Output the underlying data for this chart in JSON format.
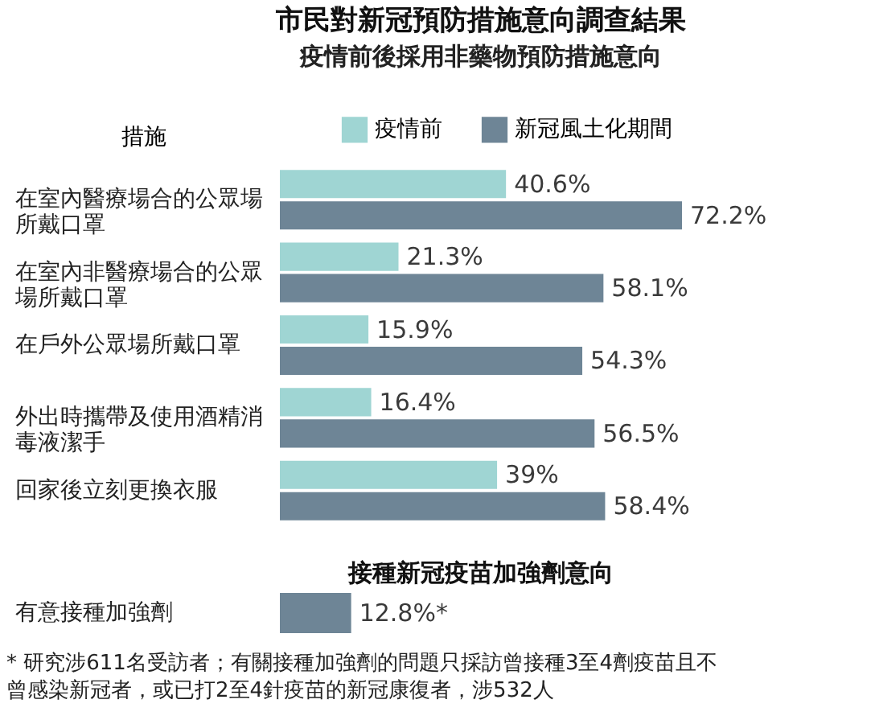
{
  "chart_data": [
    {
      "type": "bar",
      "orientation": "horizontal",
      "title": "市民對新冠預防措施意向調查結果",
      "subtitle": "疫情前後採用非藥物預防措施意向",
      "ylabel": "措施",
      "categories": [
        "在室內醫療場合的公眾場所戴口罩",
        "在室內非醫療場合的公眾場所戴口罩",
        "在戶外公眾場所戴口罩",
        "外出時攜帶及使用酒精消毒液潔手",
        "回家後立刻更換衣服"
      ],
      "series": [
        {
          "name": "疫情前",
          "color": "#9fd5d3",
          "values": [
            40.6,
            21.3,
            15.9,
            16.4,
            39
          ],
          "value_labels": [
            "40.6%",
            "21.3%",
            "15.9%",
            "16.4%",
            "39%"
          ]
        },
        {
          "name": "新冠風土化期間",
          "color": "#6e8596",
          "values": [
            72.2,
            58.1,
            54.3,
            56.5,
            58.4
          ],
          "value_labels": [
            "72.2%",
            "58.1%",
            "54.3%",
            "56.5%",
            "58.4%"
          ]
        }
      ],
      "tick_labels": "y",
      "legend": "top right",
      "grid": false
    },
    {
      "type": "bar",
      "orientation": "horizontal",
      "title": "接種新冠疫苗加強劑意向",
      "categories": [
        "有意接種加強劑"
      ],
      "values": [
        12.8
      ],
      "color": "#6e8596",
      "value_labels": [
        "12.8%*"
      ],
      "tick_labels": "y",
      "grid": false,
      "annotations": [
        "* 研究涉611名受訪者；有關接種加強劑的問題只採訪曾接種3至4劑疫苗且不曾感染新冠者，或已打2至4針疫苗的新冠康復者，涉532人"
      ]
    }
  ]
}
